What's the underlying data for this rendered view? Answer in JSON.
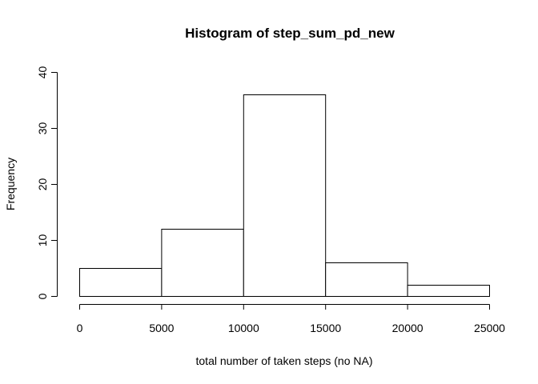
{
  "chart_data": {
    "type": "bar",
    "title": "Histogram of step_sum_pd_new",
    "xlabel": "total number of taken steps (no NA)",
    "ylabel": "Frequency",
    "bins": [
      {
        "from": 0,
        "to": 5000,
        "count": 5
      },
      {
        "from": 5000,
        "to": 10000,
        "count": 12
      },
      {
        "from": 10000,
        "to": 15000,
        "count": 36
      },
      {
        "from": 15000,
        "to": 20000,
        "count": 6
      },
      {
        "from": 20000,
        "to": 25000,
        "count": 2
      }
    ],
    "xlim": [
      0,
      25000
    ],
    "ylim": [
      0,
      40
    ],
    "xticks": [
      "0",
      "5000",
      "10000",
      "15000",
      "20000",
      "25000"
    ],
    "yticks": [
      "0",
      "10",
      "20",
      "30",
      "40"
    ],
    "grid": false
  }
}
